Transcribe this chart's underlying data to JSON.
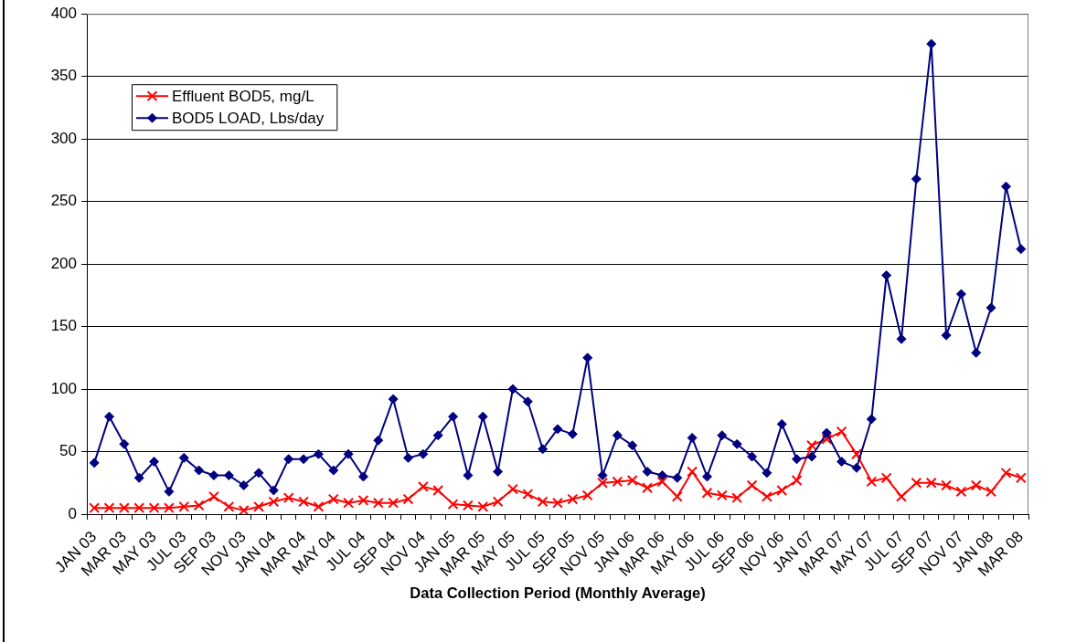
{
  "chart_data": {
    "type": "line",
    "xlabel": "Data Collection Period (Monthly Average)",
    "categories": [
      "JAN 03",
      null,
      "MAR 03",
      null,
      "MAY 03",
      null,
      "JUL 03",
      null,
      "SEP 03",
      null,
      "NOV 03",
      null,
      "JAN 04",
      null,
      "MAR 04",
      null,
      "MAY 04",
      null,
      "JUL 04",
      null,
      "SEP 04",
      null,
      "NOV 04",
      null,
      "JAN 05",
      null,
      "MAR 05",
      null,
      "MAY 05",
      null,
      "JUL 05",
      null,
      "SEP 05",
      null,
      "NOV 05",
      null,
      "JAN 06",
      null,
      "MAR 06",
      null,
      "MAY 06",
      null,
      "JUL 06",
      null,
      "SEP 06",
      null,
      "NOV 06",
      null,
      "JAN 07",
      null,
      "MAR 07",
      null,
      "MAY 07",
      null,
      "JUL 07",
      null,
      "SEP 07",
      null,
      "NOV 07",
      null,
      "JAN 08",
      null,
      "MAR 08"
    ],
    "series": [
      {
        "name": "Effluent BOD5, mg/L",
        "color": "#ff0000",
        "marker": "cross",
        "values": [
          5,
          5,
          5,
          5,
          5,
          5,
          6,
          7,
          14,
          6,
          3,
          6,
          10,
          13,
          10,
          6,
          12,
          9,
          11,
          9,
          9,
          12,
          22,
          19,
          8,
          7,
          6,
          10,
          20,
          16,
          10,
          9,
          12,
          15,
          25,
          26,
          27,
          21,
          26,
          14,
          34,
          17,
          15,
          13,
          23,
          14,
          19,
          27,
          55,
          60,
          66,
          48,
          26,
          29,
          14,
          25,
          25,
          23,
          18,
          23,
          18,
          33,
          29
        ]
      },
      {
        "name": "BOD5 LOAD, Lbs/day",
        "color": "#000080",
        "marker": "diamond",
        "values": [
          41,
          78,
          56,
          29,
          42,
          18,
          45,
          35,
          31,
          31,
          23,
          33,
          19,
          44,
          44,
          48,
          35,
          48,
          30,
          59,
          92,
          45,
          48,
          63,
          78,
          31,
          78,
          34,
          100,
          90,
          52,
          68,
          64,
          125,
          31,
          63,
          55,
          34,
          31,
          29,
          61,
          30,
          63,
          56,
          46,
          33,
          72,
          44,
          46,
          65,
          42,
          37,
          76,
          191,
          140,
          268,
          376,
          143,
          176,
          129,
          165,
          262,
          212
        ]
      }
    ],
    "ylim": [
      0,
      400
    ],
    "yticks": [
      0,
      50,
      100,
      150,
      200,
      250,
      300,
      350,
      400
    ],
    "grid": "y",
    "legend": "top left"
  }
}
